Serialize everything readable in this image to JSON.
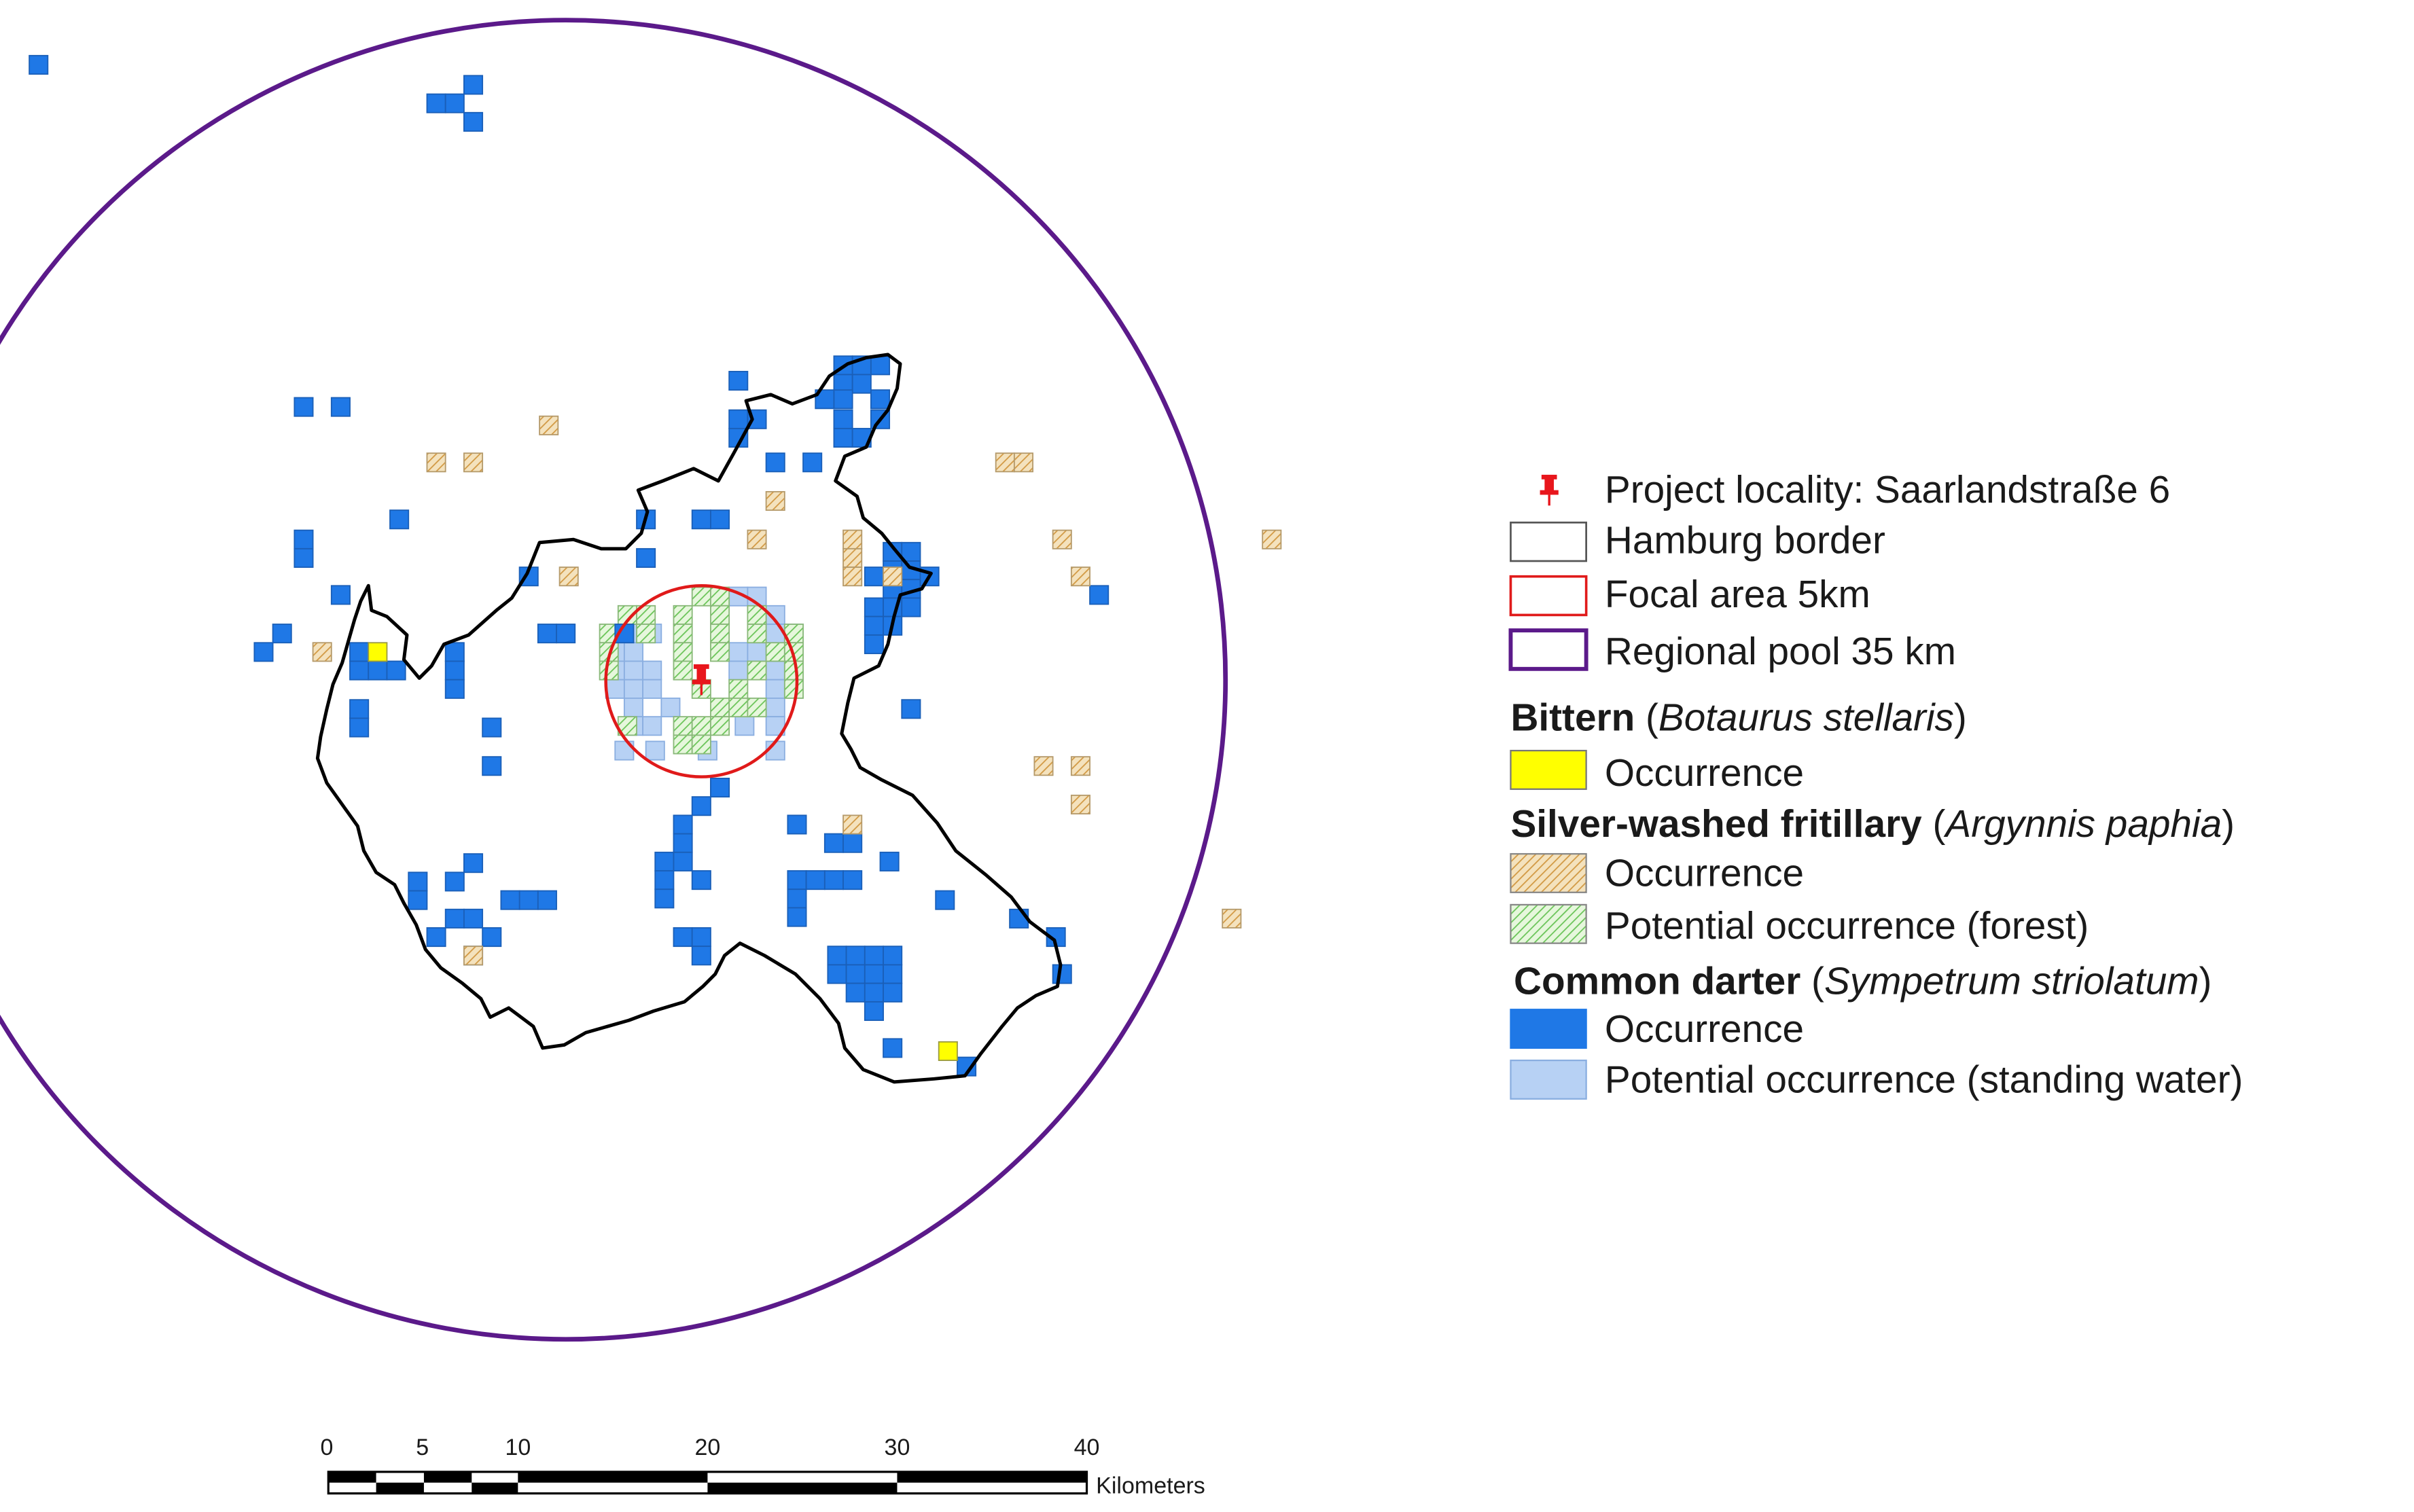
{
  "legend": {
    "project_locality": "Project locality: Saarlandstraße 6",
    "hamburg_border": "Hamburg border",
    "focal_area": "Focal area 5km",
    "regional_pool": "Regional pool 35 km",
    "bittern": {
      "common": "Bittern",
      "latin": "Botaurus stellaris",
      "occurrence": "Occurrence"
    },
    "fritillary": {
      "common": "Silver-washed fritillary",
      "latin": "Argynnis paphia",
      "occurrence": "Occurrence",
      "potential": "Potential occurrence (forest)"
    },
    "darter": {
      "common": "Common darter",
      "latin": "Sympetrum striolatum",
      "occurrence": "Occurrence",
      "potential": "Potential occurrence (standing water)"
    }
  },
  "scalebar": {
    "ticks": [
      "0",
      "5",
      "10",
      "20",
      "30",
      "40"
    ],
    "unit": "Kilometers"
  },
  "colors": {
    "regional_pool": "#5b1a8a",
    "focal_area": "#e01a1a",
    "hamburg_border": "#000000",
    "bittern": "#ffff00",
    "fritillary": "#e7c27f",
    "fritillary_potential": "#b9e6a0",
    "darter": "#1f78e6",
    "darter_potential": "#b7d1f4",
    "pin": "#e8161c"
  }
}
